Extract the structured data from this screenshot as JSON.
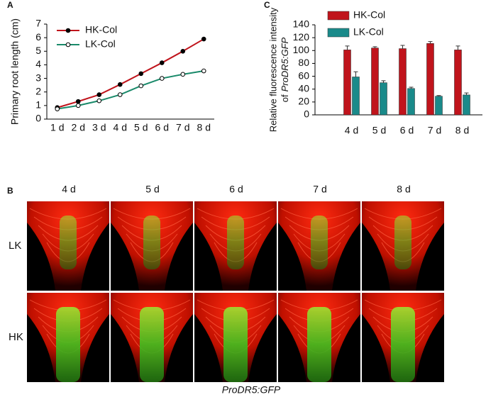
{
  "chart_data": [
    {
      "type": "line",
      "panel_label": "A",
      "y_label": [
        "Primary root length (cm)"
      ],
      "categories": [
        "1 d",
        "2 d",
        "3 d",
        "4 d",
        "5 d",
        "6 d",
        "7 d",
        "8 d"
      ],
      "series": [
        {
          "name": "HK-Col",
          "color": "#c0141c",
          "marker": "filled",
          "values": [
            0.85,
            1.3,
            1.8,
            2.55,
            3.35,
            4.15,
            5.0,
            5.9
          ]
        },
        {
          "name": "LK-Col",
          "color": "#1a8a6a",
          "marker": "open",
          "values": [
            0.75,
            1.0,
            1.35,
            1.8,
            2.45,
            3.0,
            3.3,
            3.55
          ]
        }
      ],
      "ylim": [
        0,
        7
      ],
      "yticks": [
        0,
        1,
        2,
        3,
        4,
        5,
        6,
        7
      ]
    },
    {
      "type": "bar",
      "panel_label": "C",
      "y_label": [
        "Relative fluorescence intensity",
        "of",
        "ProDR5:GFP"
      ],
      "categories": [
        "4 d",
        "5 d",
        "6 d",
        "7 d",
        "8 d"
      ],
      "series": [
        {
          "name": "HK-Col",
          "color": "#c0141c",
          "values": [
            101,
            104,
            103,
            111,
            101
          ],
          "errors": [
            6,
            2,
            5,
            3,
            6
          ]
        },
        {
          "name": "LK-Col",
          "color": "#1a8a8a",
          "values": [
            59,
            50,
            41,
            29,
            31
          ],
          "errors": [
            8,
            3,
            2,
            1,
            3
          ]
        }
      ],
      "ylim": [
        0,
        140
      ],
      "yticks": [
        0,
        20,
        40,
        60,
        80,
        100,
        120,
        140
      ]
    }
  ],
  "panel_b": {
    "label": "B",
    "columns": [
      "4 d",
      "5 d",
      "6 d",
      "7 d",
      "8 d"
    ],
    "rows": [
      "LK",
      "HK"
    ],
    "caption": "ProDR5:GFP"
  }
}
